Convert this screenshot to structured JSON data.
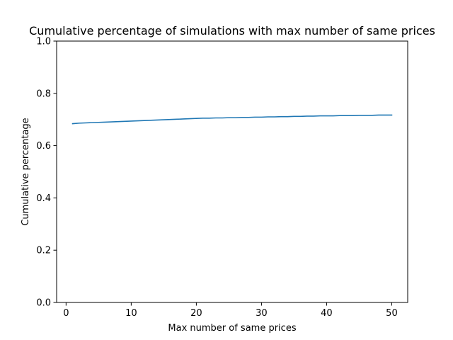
{
  "chart_data": {
    "type": "line",
    "title": "Cumulative percentage of simulations with max number of same prices",
    "xlabel": "Max number of same prices",
    "ylabel": "Cumulative percentage",
    "xlim": [
      -1.45,
      52.45
    ],
    "ylim": [
      0.0,
      1.0
    ],
    "xticks": [
      0,
      10,
      20,
      30,
      40,
      50
    ],
    "yticks": [
      0.0,
      0.2,
      0.4,
      0.6,
      0.8,
      1.0
    ],
    "xtick_labels": [
      "0",
      "10",
      "20",
      "30",
      "40",
      "50"
    ],
    "ytick_labels": [
      "0.0",
      "0.2",
      "0.4",
      "0.6",
      "0.8",
      "1.0"
    ],
    "grid": false,
    "series": [
      {
        "color": "#1f77b4",
        "x": [
          1,
          2,
          3,
          4,
          5,
          6,
          7,
          8,
          9,
          10,
          11,
          12,
          13,
          14,
          15,
          16,
          17,
          18,
          19,
          20,
          21,
          22,
          23,
          24,
          25,
          26,
          27,
          28,
          29,
          30,
          31,
          32,
          33,
          34,
          35,
          36,
          37,
          38,
          39,
          40,
          41,
          42,
          43,
          44,
          45,
          46,
          47,
          48,
          49,
          50
        ],
        "y": [
          0.684,
          0.686,
          0.687,
          0.688,
          0.689,
          0.69,
          0.691,
          0.692,
          0.693,
          0.694,
          0.695,
          0.696,
          0.697,
          0.698,
          0.699,
          0.7,
          0.701,
          0.702,
          0.703,
          0.704,
          0.705,
          0.705,
          0.706,
          0.706,
          0.707,
          0.707,
          0.708,
          0.708,
          0.709,
          0.709,
          0.71,
          0.71,
          0.711,
          0.711,
          0.712,
          0.712,
          0.713,
          0.713,
          0.714,
          0.714,
          0.714,
          0.715,
          0.715,
          0.715,
          0.716,
          0.716,
          0.716,
          0.717,
          0.717,
          0.717
        ]
      }
    ]
  }
}
